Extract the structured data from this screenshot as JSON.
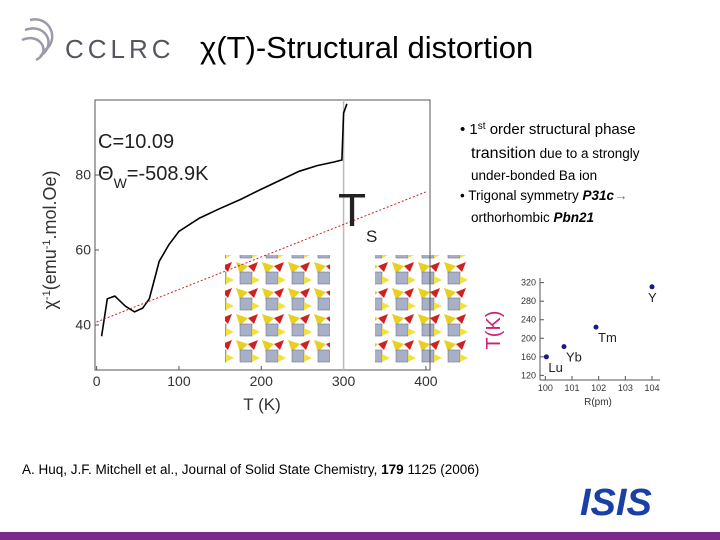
{
  "header": {
    "logo": "CCLRC",
    "title": "χ(T)-Structural distortion"
  },
  "bullets": [
    [
      "• ",
      "1",
      "st",
      " order structural phase"
    ],
    [
      "transition",
      " due to a strongly"
    ],
    [
      "under-bonded Ba ion"
    ],
    [
      "• Trigonal symmetry ",
      "P31c",
      "→"
    ],
    [
      "orthorhombic ",
      "Pbn21"
    ]
  ],
  "chart_data": [
    {
      "type": "line",
      "xlabel": "T (K)",
      "ylabel": [
        "χ",
        "-1",
        "(emu",
        "-1",
        ".mol.Oe)"
      ],
      "xlim": [
        -2,
        405
      ],
      "ylim": [
        28,
        100
      ],
      "xticks": [
        0,
        100,
        200,
        300,
        400
      ],
      "yticks": [
        40,
        60,
        80
      ],
      "vline": 300,
      "vline_color": "#bbbbbb",
      "annotations": {
        "c": "C=10.09",
        "theta": [
          "Θ",
          "W",
          "=-508.9K"
        ],
        "ts": [
          "T",
          "S"
        ]
      },
      "series": [
        {
          "color": "#000000",
          "style": "solid",
          "x": [
            6,
            13,
            22,
            35,
            46,
            56,
            64,
            70,
            76,
            88,
            100,
            125,
            149,
            175,
            198,
            222,
            246,
            268,
            289,
            298,
            300,
            304
          ],
          "values": [
            37,
            47,
            47.7,
            45,
            43.5,
            44.5,
            47,
            52,
            57,
            61.5,
            65,
            68.5,
            71,
            73.5,
            76,
            78.5,
            81,
            82.5,
            83.5,
            84,
            96.5,
            99
          ]
        },
        {
          "color": "#cc2222",
          "style": "dotted",
          "x": [
            0,
            400
          ],
          "values": [
            40.8,
            75.5
          ]
        }
      ]
    },
    {
      "type": "scatter",
      "xlabel": "R(pm)",
      "ylabel": "T(K)",
      "xlim": [
        99.8,
        104.3
      ],
      "ylim": [
        110,
        330
      ],
      "xticks": [
        100,
        101,
        102,
        103,
        104
      ],
      "yticks": [
        120,
        160,
        200,
        240,
        280,
        320
      ],
      "color": "#1a1a8c",
      "ylabel_color": "#cc2277",
      "points": [
        {
          "label": "Lu",
          "x": 100.04,
          "value": 160
        },
        {
          "label": "Yb",
          "x": 100.7,
          "value": 182
        },
        {
          "label": "Tm",
          "x": 101.9,
          "value": 224
        },
        {
          "label": "Y",
          "x": 104,
          "value": 311
        }
      ]
    }
  ],
  "footer": {
    "citation": [
      "A. Huq, J.F. Mitchell et al., Journal of Solid State Chemistry, ",
      "179",
      " 1125 (2006)"
    ],
    "logo": "ISIS"
  }
}
